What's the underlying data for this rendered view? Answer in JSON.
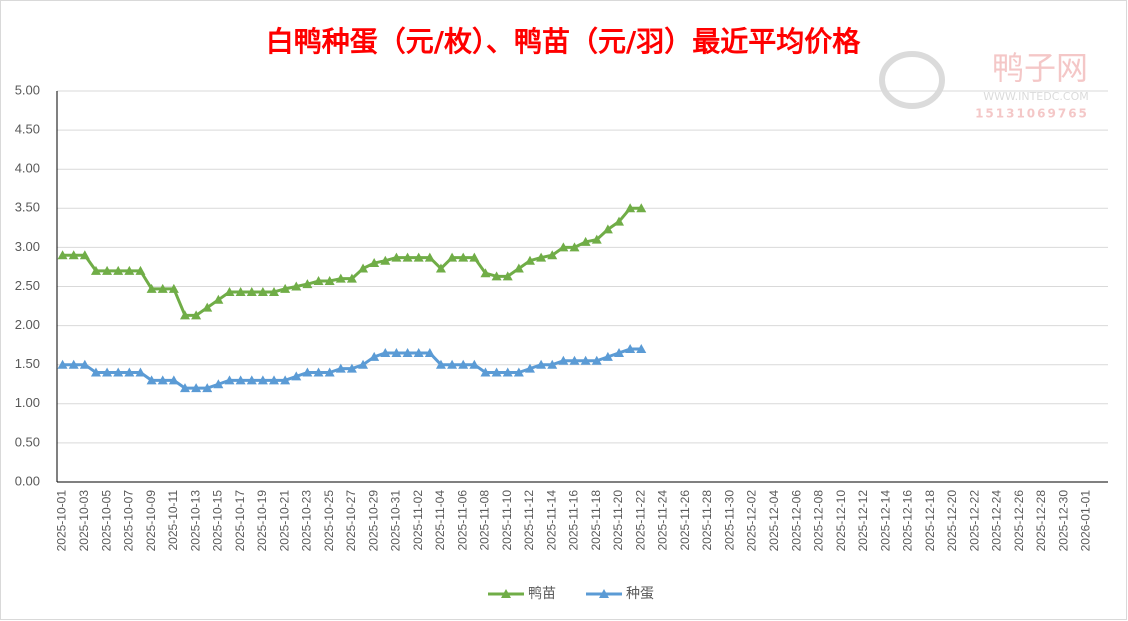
{
  "chart_data": {
    "type": "line",
    "title": "白鸭种蛋（元/枚）、鸭苗（元/羽）最近平均价格",
    "watermark": [
      "鸭子网",
      "WWW.INTEDC.COM",
      "15131069765"
    ],
    "categories": [
      "2025-10-01",
      null,
      "2025-10-03",
      null,
      "2025-10-05",
      null,
      "2025-10-07",
      null,
      "2025-10-09",
      null,
      "2025-10-11",
      null,
      "2025-10-13",
      null,
      "2025-10-15",
      null,
      "2025-10-17",
      null,
      "2025-10-19",
      null,
      "2025-10-21",
      null,
      "2025-10-23",
      null,
      "2025-10-25",
      null,
      "2025-10-27",
      null,
      "2025-10-29",
      null,
      "2025-10-31",
      null,
      "2025-11-02",
      null,
      "2025-11-04",
      null,
      "2025-11-06",
      null,
      "2025-11-08",
      null,
      "2025-11-10",
      null,
      "2025-11-12",
      null,
      "2025-11-14",
      null,
      "2025-11-16",
      null,
      "2025-11-18",
      null,
      "2025-11-20",
      null,
      "2025-11-22",
      null,
      "2025-11-24",
      null,
      "2025-11-26",
      null,
      "2025-11-28",
      null,
      "2025-11-30",
      null,
      "2025-12-02",
      null,
      "2025-12-04",
      null,
      "2025-12-06",
      null,
      "2025-12-08",
      null,
      "2025-12-10",
      null,
      "2025-12-12",
      null,
      "2025-12-14",
      null,
      "2025-12-16",
      null,
      "2025-12-18",
      null,
      "2025-12-20",
      null,
      "2025-12-22",
      null,
      "2025-12-24",
      null,
      "2025-12-26",
      null,
      "2025-12-28",
      null,
      "2025-12-30",
      null,
      "2026-01-01"
    ],
    "series": [
      {
        "name": "鸭苗",
        "color": "#70ad47",
        "values": [
          2.9,
          2.9,
          2.9,
          2.7,
          2.7,
          2.7,
          2.7,
          2.7,
          2.47,
          2.47,
          2.47,
          2.13,
          2.13,
          2.23,
          2.33,
          2.43,
          2.43,
          2.43,
          2.43,
          2.43,
          2.47,
          2.5,
          2.53,
          2.57,
          2.57,
          2.6,
          2.6,
          2.73,
          2.8,
          2.83,
          2.87,
          2.87,
          2.87,
          2.87,
          2.73,
          2.87,
          2.87,
          2.87,
          2.67,
          2.63,
          2.63,
          2.73,
          2.83,
          2.87,
          2.9,
          3.0,
          3.0,
          3.07,
          3.1,
          3.23,
          3.33,
          3.5,
          3.5,
          null,
          null,
          null,
          null,
          null,
          null,
          null,
          null,
          null,
          null,
          null,
          null,
          null,
          null,
          null,
          null,
          null,
          null,
          null,
          null,
          null,
          null,
          null,
          null,
          null,
          null,
          null,
          null,
          null,
          null,
          null,
          null,
          null,
          null,
          null,
          null,
          null,
          null,
          null,
          null
        ]
      },
      {
        "name": "种蛋",
        "color": "#5b9bd5",
        "values": [
          1.5,
          1.5,
          1.5,
          1.4,
          1.4,
          1.4,
          1.4,
          1.4,
          1.3,
          1.3,
          1.3,
          1.2,
          1.2,
          1.2,
          1.25,
          1.3,
          1.3,
          1.3,
          1.3,
          1.3,
          1.3,
          1.35,
          1.4,
          1.4,
          1.4,
          1.45,
          1.45,
          1.5,
          1.6,
          1.65,
          1.65,
          1.65,
          1.65,
          1.65,
          1.5,
          1.5,
          1.5,
          1.5,
          1.4,
          1.4,
          1.4,
          1.4,
          1.45,
          1.5,
          1.5,
          1.55,
          1.55,
          1.55,
          1.55,
          1.6,
          1.65,
          1.7,
          1.7,
          null,
          null,
          null,
          null,
          null,
          null,
          null,
          null,
          null,
          null,
          null,
          null,
          null,
          null,
          null,
          null,
          null,
          null,
          null,
          null,
          null,
          null,
          null,
          null,
          null,
          null,
          null,
          null,
          null,
          null,
          null,
          null,
          null,
          null,
          null,
          null,
          null,
          null,
          null,
          null
        ]
      }
    ],
    "ylim": [
      0,
      5
    ],
    "yticks": [
      {
        "value": 0,
        "label": "0.00"
      },
      {
        "value": 0.5,
        "label": "0.50"
      },
      {
        "value": 1,
        "label": "1.00"
      },
      {
        "value": 1.5,
        "label": "1.50"
      },
      {
        "value": 2,
        "label": "2.00"
      },
      {
        "value": 2.5,
        "label": "2.50"
      },
      {
        "value": 3,
        "label": "3.00"
      },
      {
        "value": 3.5,
        "label": "3.50"
      },
      {
        "value": 4,
        "label": "4.00"
      },
      {
        "value": 4.5,
        "label": "4.50"
      },
      {
        "value": 5,
        "label": "5.00"
      }
    ],
    "grid": true,
    "legend": "bottom"
  }
}
